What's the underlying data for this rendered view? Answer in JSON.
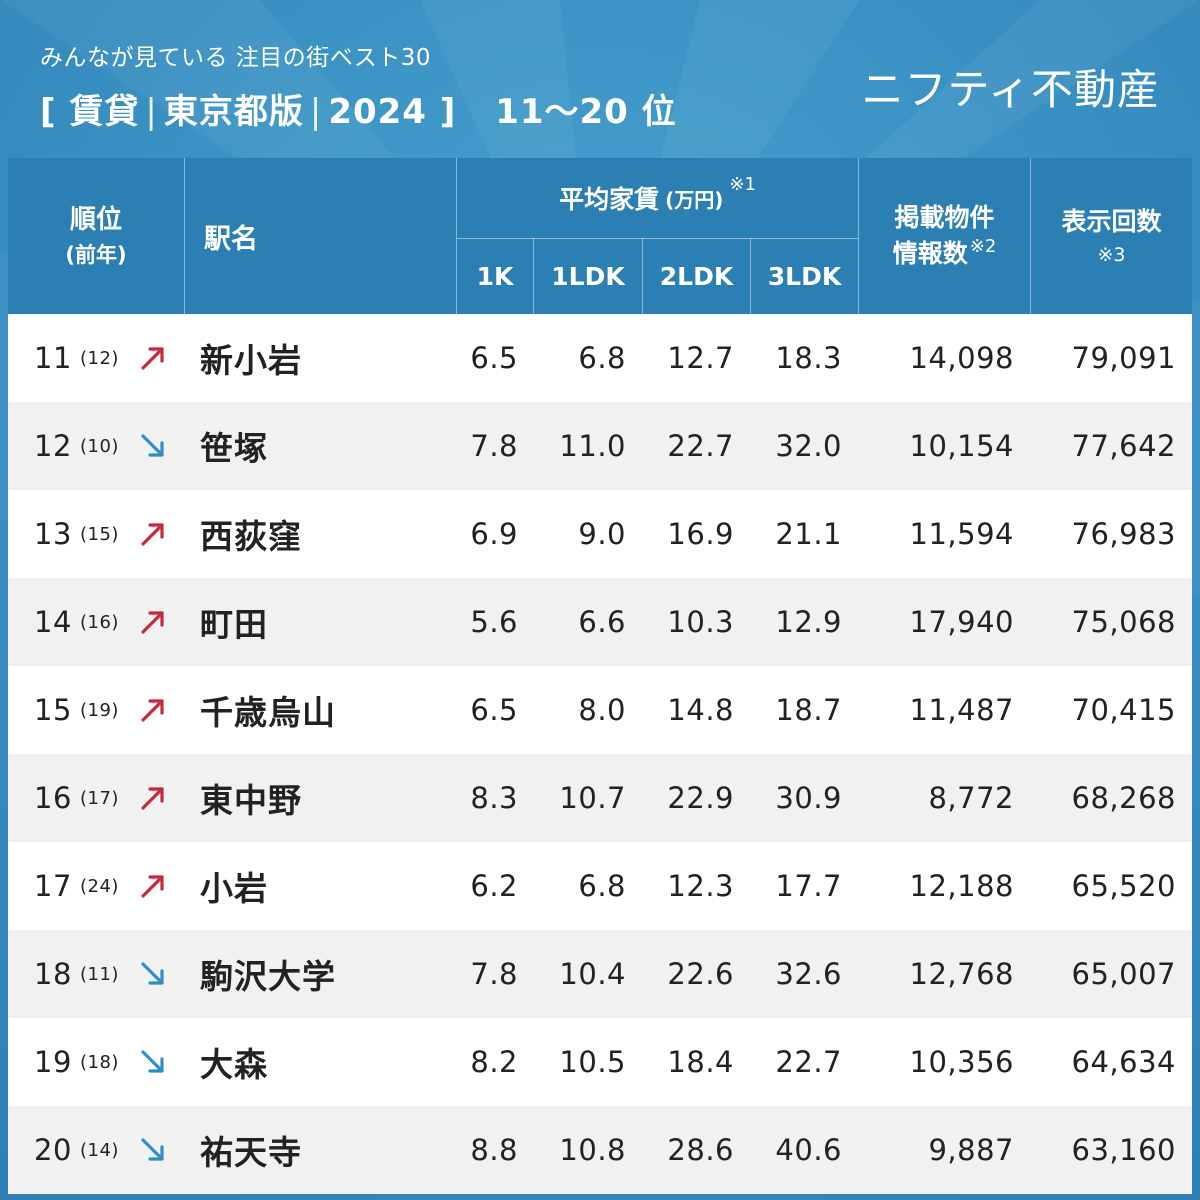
{
  "header": {
    "subtitle": "みんなが見ている 注目の街ベスト30",
    "title_parts": [
      "[ 賃貸",
      "|",
      "東京都版",
      "|",
      "2024 ]"
    ],
    "rank_range": "11〜20 位",
    "brand": "ニフティ不動産"
  },
  "colors": {
    "background": "#3a93c4",
    "header_row": "#2b7fb2",
    "up_arrow": "#c8283a",
    "down_arrow": "#2e8fc8",
    "stripe": "#f1f1f1"
  },
  "chart_data": {
    "type": "table",
    "columns": {
      "rank": "順位",
      "rank_prev": "(前年)",
      "station": "駅名",
      "avg_rent": "平均家賃",
      "avg_rent_unit": "(万円)",
      "avg_rent_note": "※1",
      "rent_1k": "1K",
      "rent_1ldk": "1LDK",
      "rent_2ldk": "2LDK",
      "rent_3ldk": "3LDK",
      "listings_line1": "掲載物件",
      "listings_line2": "情報数",
      "listings_note": "※2",
      "views": "表示回数",
      "views_note": "※3"
    },
    "rows": [
      {
        "rank": "11",
        "prev": "(12)",
        "trend": "up",
        "station": "新小岩",
        "rent_1k": "6.5",
        "rent_1ldk": "6.8",
        "rent_2ldk": "12.7",
        "rent_3ldk": "18.3",
        "listings": "14,098",
        "views": "79,091"
      },
      {
        "rank": "12",
        "prev": "(10)",
        "trend": "down",
        "station": "笹塚",
        "rent_1k": "7.8",
        "rent_1ldk": "11.0",
        "rent_2ldk": "22.7",
        "rent_3ldk": "32.0",
        "listings": "10,154",
        "views": "77,642"
      },
      {
        "rank": "13",
        "prev": "(15)",
        "trend": "up",
        "station": "西荻窪",
        "rent_1k": "6.9",
        "rent_1ldk": "9.0",
        "rent_2ldk": "16.9",
        "rent_3ldk": "21.1",
        "listings": "11,594",
        "views": "76,983"
      },
      {
        "rank": "14",
        "prev": "(16)",
        "trend": "up",
        "station": "町田",
        "rent_1k": "5.6",
        "rent_1ldk": "6.6",
        "rent_2ldk": "10.3",
        "rent_3ldk": "12.9",
        "listings": "17,940",
        "views": "75,068"
      },
      {
        "rank": "15",
        "prev": "(19)",
        "trend": "up",
        "station": "千歳烏山",
        "rent_1k": "6.5",
        "rent_1ldk": "8.0",
        "rent_2ldk": "14.8",
        "rent_3ldk": "18.7",
        "listings": "11,487",
        "views": "70,415"
      },
      {
        "rank": "16",
        "prev": "(17)",
        "trend": "up",
        "station": "東中野",
        "rent_1k": "8.3",
        "rent_1ldk": "10.7",
        "rent_2ldk": "22.9",
        "rent_3ldk": "30.9",
        "listings": "8,772",
        "views": "68,268"
      },
      {
        "rank": "17",
        "prev": "(24)",
        "trend": "up",
        "station": "小岩",
        "rent_1k": "6.2",
        "rent_1ldk": "6.8",
        "rent_2ldk": "12.3",
        "rent_3ldk": "17.7",
        "listings": "12,188",
        "views": "65,520"
      },
      {
        "rank": "18",
        "prev": "(11)",
        "trend": "down",
        "station": "駒沢大学",
        "rent_1k": "7.8",
        "rent_1ldk": "10.4",
        "rent_2ldk": "22.6",
        "rent_3ldk": "32.6",
        "listings": "12,768",
        "views": "65,007"
      },
      {
        "rank": "19",
        "prev": "(18)",
        "trend": "down",
        "station": "大森",
        "rent_1k": "8.2",
        "rent_1ldk": "10.5",
        "rent_2ldk": "18.4",
        "rent_3ldk": "22.7",
        "listings": "10,356",
        "views": "64,634"
      },
      {
        "rank": "20",
        "prev": "(14)",
        "trend": "down",
        "station": "祐天寺",
        "rent_1k": "8.8",
        "rent_1ldk": "10.8",
        "rent_2ldk": "28.6",
        "rent_3ldk": "40.6",
        "listings": "9,887",
        "views": "63,160"
      }
    ]
  }
}
